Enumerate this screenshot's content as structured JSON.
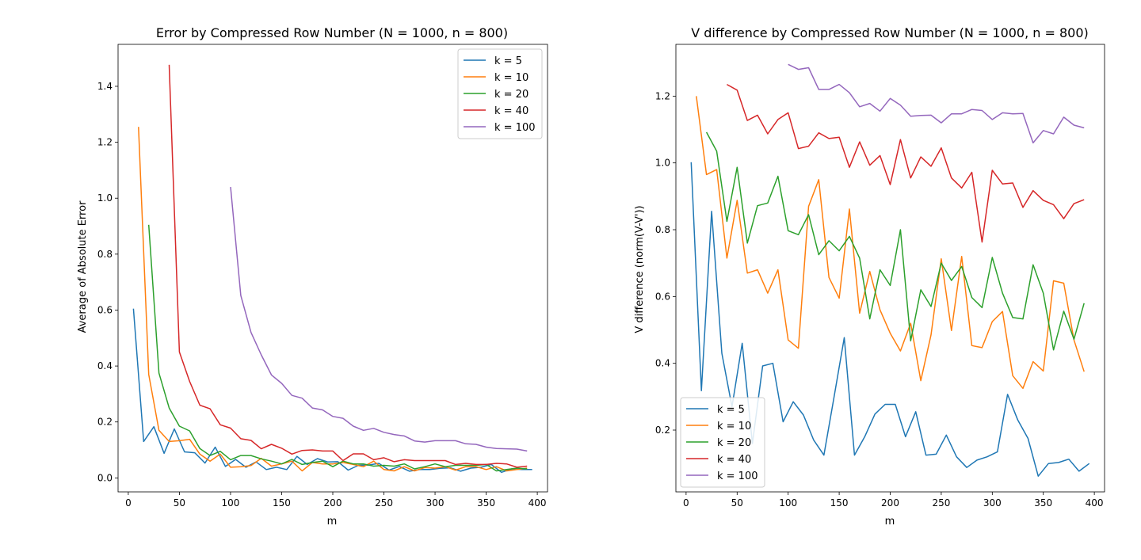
{
  "chart_data": [
    {
      "type": "line",
      "title": "Error by Compressed Row Number (N = 1000, n = 800)",
      "xlabel": "m",
      "ylabel": "Average of Absolute Error",
      "xlim": [
        -10,
        410
      ],
      "ylim": [
        -0.05,
        1.55
      ],
      "xticks": [
        0,
        50,
        100,
        150,
        200,
        250,
        300,
        350,
        400
      ],
      "yticks": [
        0.0,
        0.2,
        0.4,
        0.6,
        0.8,
        1.0,
        1.2,
        1.4
      ],
      "legend": "top-right",
      "grid": false,
      "series": [
        {
          "name": "k = 5",
          "color": "#1f77b4",
          "x": [
            5,
            15,
            25,
            35,
            45,
            55,
            65,
            75,
            85,
            95,
            105,
            115,
            125,
            135,
            145,
            155,
            165,
            175,
            185,
            195,
            205,
            215,
            225,
            235,
            245,
            255,
            265,
            275,
            285,
            295,
            305,
            315,
            325,
            335,
            345,
            355,
            365,
            375,
            385,
            395
          ],
          "y": [
            0.605,
            0.13,
            0.183,
            0.088,
            0.175,
            0.093,
            0.09,
            0.053,
            0.11,
            0.041,
            0.066,
            0.038,
            0.057,
            0.03,
            0.038,
            0.03,
            0.077,
            0.048,
            0.069,
            0.057,
            0.058,
            0.028,
            0.045,
            0.046,
            0.052,
            0.028,
            0.041,
            0.024,
            0.03,
            0.03,
            0.034,
            0.036,
            0.024,
            0.035,
            0.038,
            0.048,
            0.02,
            0.032,
            0.03,
            0.03
          ]
        },
        {
          "name": "k = 10",
          "color": "#ff7f0e",
          "x": [
            10,
            20,
            30,
            40,
            50,
            60,
            70,
            80,
            90,
            100,
            110,
            120,
            130,
            140,
            150,
            160,
            170,
            180,
            190,
            200,
            210,
            220,
            230,
            240,
            250,
            260,
            270,
            280,
            290,
            300,
            310,
            320,
            330,
            340,
            350,
            360,
            370,
            380,
            390
          ],
          "y": [
            1.255,
            0.37,
            0.17,
            0.13,
            0.133,
            0.138,
            0.085,
            0.06,
            0.085,
            0.038,
            0.04,
            0.044,
            0.07,
            0.042,
            0.05,
            0.06,
            0.025,
            0.055,
            0.05,
            0.05,
            0.055,
            0.048,
            0.04,
            0.06,
            0.03,
            0.025,
            0.04,
            0.025,
            0.037,
            0.035,
            0.04,
            0.028,
            0.04,
            0.04,
            0.03,
            0.04,
            0.025,
            0.03,
            0.035
          ]
        },
        {
          "name": "k = 20",
          "color": "#2ca02c",
          "x": [
            20,
            30,
            40,
            50,
            60,
            70,
            80,
            90,
            100,
            110,
            120,
            130,
            140,
            150,
            160,
            170,
            180,
            190,
            200,
            210,
            220,
            230,
            240,
            250,
            260,
            270,
            280,
            290,
            300,
            310,
            320,
            330,
            340,
            350,
            360,
            370,
            380,
            390
          ],
          "y": [
            0.905,
            0.375,
            0.25,
            0.185,
            0.168,
            0.105,
            0.08,
            0.095,
            0.065,
            0.08,
            0.08,
            0.068,
            0.06,
            0.05,
            0.066,
            0.048,
            0.055,
            0.06,
            0.04,
            0.06,
            0.05,
            0.05,
            0.042,
            0.045,
            0.042,
            0.05,
            0.032,
            0.04,
            0.05,
            0.04,
            0.045,
            0.045,
            0.045,
            0.048,
            0.025,
            0.03,
            0.035,
            0.032
          ]
        },
        {
          "name": "k = 40",
          "color": "#d62728",
          "x": [
            40,
            50,
            60,
            70,
            80,
            90,
            100,
            110,
            120,
            130,
            140,
            150,
            160,
            170,
            180,
            190,
            200,
            210,
            220,
            230,
            240,
            250,
            260,
            270,
            280,
            290,
            300,
            310,
            320,
            330,
            340,
            350,
            360,
            370,
            380,
            390
          ],
          "y": [
            1.477,
            0.45,
            0.345,
            0.26,
            0.247,
            0.19,
            0.178,
            0.14,
            0.134,
            0.104,
            0.12,
            0.106,
            0.085,
            0.098,
            0.1,
            0.096,
            0.096,
            0.062,
            0.086,
            0.086,
            0.065,
            0.072,
            0.058,
            0.065,
            0.062,
            0.062,
            0.062,
            0.062,
            0.048,
            0.052,
            0.048,
            0.048,
            0.052,
            0.05,
            0.038,
            0.042
          ]
        },
        {
          "name": "k = 100",
          "color": "#9467bd",
          "x": [
            100,
            110,
            120,
            130,
            140,
            150,
            160,
            170,
            180,
            190,
            200,
            210,
            220,
            230,
            240,
            250,
            260,
            270,
            280,
            290,
            300,
            310,
            320,
            330,
            340,
            350,
            360,
            370,
            380,
            390
          ],
          "y": [
            1.04,
            0.652,
            0.52,
            0.44,
            0.368,
            0.338,
            0.295,
            0.285,
            0.25,
            0.243,
            0.22,
            0.213,
            0.185,
            0.17,
            0.177,
            0.163,
            0.155,
            0.15,
            0.132,
            0.128,
            0.133,
            0.133,
            0.133,
            0.122,
            0.12,
            0.11,
            0.105,
            0.104,
            0.103,
            0.096
          ]
        }
      ]
    },
    {
      "type": "line",
      "title": "V difference by Compressed Row Number (N = 1000, n = 800)",
      "xlabel": "m",
      "ylabel": "V difference (norm(V-V'))",
      "xlim": [
        -10,
        410
      ],
      "ylim": [
        0.015,
        1.355
      ],
      "xticks": [
        0,
        50,
        100,
        150,
        200,
        250,
        300,
        350,
        400
      ],
      "yticks": [
        0.2,
        0.4,
        0.6,
        0.8,
        1.0,
        1.2
      ],
      "legend": "bottom-left",
      "grid": false,
      "series": [
        {
          "name": "k = 5",
          "color": "#1f77b4",
          "x": [
            5,
            15,
            25,
            35,
            45,
            55,
            65,
            75,
            85,
            95,
            105,
            115,
            125,
            135,
            145,
            155,
            165,
            175,
            185,
            195,
            205,
            215,
            225,
            235,
            245,
            255,
            265,
            275,
            285,
            295,
            305,
            315,
            325,
            335,
            345,
            355,
            365,
            375,
            385,
            395
          ],
          "y": [
            1.002,
            0.318,
            0.855,
            0.43,
            0.27,
            0.46,
            0.16,
            0.392,
            0.4,
            0.225,
            0.285,
            0.245,
            0.17,
            0.125,
            0.3,
            0.477,
            0.125,
            0.18,
            0.248,
            0.277,
            0.277,
            0.18,
            0.255,
            0.125,
            0.128,
            0.185,
            0.12,
            0.088,
            0.11,
            0.12,
            0.135,
            0.307,
            0.23,
            0.175,
            0.062,
            0.1,
            0.103,
            0.113,
            0.077,
            0.1
          ]
        },
        {
          "name": "k = 10",
          "color": "#ff7f0e",
          "x": [
            10,
            20,
            30,
            40,
            50,
            60,
            70,
            80,
            90,
            100,
            110,
            120,
            130,
            140,
            150,
            160,
            170,
            180,
            190,
            200,
            210,
            220,
            230,
            240,
            250,
            260,
            270,
            280,
            290,
            300,
            310,
            320,
            330,
            340,
            350,
            360,
            370,
            380,
            390
          ],
          "y": [
            1.2,
            0.965,
            0.98,
            0.715,
            0.888,
            0.67,
            0.68,
            0.61,
            0.68,
            0.47,
            0.445,
            0.87,
            0.95,
            0.657,
            0.595,
            0.862,
            0.55,
            0.675,
            0.56,
            0.49,
            0.437,
            0.52,
            0.348,
            0.485,
            0.713,
            0.498,
            0.72,
            0.453,
            0.447,
            0.525,
            0.555,
            0.363,
            0.325,
            0.405,
            0.377,
            0.647,
            0.64,
            0.47,
            0.375
          ]
        },
        {
          "name": "k = 20",
          "color": "#2ca02c",
          "x": [
            20,
            30,
            40,
            50,
            60,
            70,
            80,
            90,
            100,
            110,
            120,
            130,
            140,
            150,
            160,
            170,
            180,
            190,
            200,
            210,
            220,
            230,
            240,
            250,
            260,
            270,
            280,
            290,
            300,
            310,
            320,
            330,
            340,
            350,
            360,
            370,
            380,
            390
          ],
          "y": [
            1.092,
            1.035,
            0.825,
            0.987,
            0.76,
            0.872,
            0.88,
            0.96,
            0.797,
            0.785,
            0.845,
            0.725,
            0.767,
            0.737,
            0.78,
            0.715,
            0.533,
            0.68,
            0.633,
            0.8,
            0.467,
            0.62,
            0.57,
            0.7,
            0.648,
            0.69,
            0.597,
            0.567,
            0.717,
            0.61,
            0.537,
            0.533,
            0.695,
            0.61,
            0.44,
            0.556,
            0.472,
            0.58
          ]
        },
        {
          "name": "k = 40",
          "color": "#d62728",
          "x": [
            40,
            50,
            60,
            70,
            80,
            90,
            100,
            110,
            120,
            130,
            140,
            150,
            160,
            170,
            180,
            190,
            200,
            210,
            220,
            230,
            240,
            250,
            260,
            270,
            280,
            290,
            300,
            310,
            320,
            330,
            340,
            350,
            360,
            370,
            380,
            390
          ],
          "y": [
            1.235,
            1.218,
            1.127,
            1.143,
            1.087,
            1.13,
            1.15,
            1.043,
            1.05,
            1.09,
            1.073,
            1.077,
            0.987,
            1.063,
            0.993,
            1.022,
            0.935,
            1.07,
            0.955,
            1.018,
            0.99,
            1.045,
            0.955,
            0.925,
            0.972,
            0.763,
            0.978,
            0.937,
            0.94,
            0.867,
            0.917,
            0.888,
            0.875,
            0.833,
            0.878,
            0.89
          ]
        },
        {
          "name": "k = 100",
          "color": "#9467bd",
          "x": [
            100,
            110,
            120,
            130,
            140,
            150,
            160,
            170,
            180,
            190,
            200,
            210,
            220,
            230,
            240,
            250,
            260,
            270,
            280,
            290,
            300,
            310,
            320,
            330,
            340,
            350,
            360,
            370,
            380,
            390
          ],
          "y": [
            1.295,
            1.28,
            1.285,
            1.22,
            1.22,
            1.235,
            1.21,
            1.168,
            1.178,
            1.155,
            1.193,
            1.173,
            1.14,
            1.142,
            1.143,
            1.12,
            1.147,
            1.147,
            1.16,
            1.157,
            1.13,
            1.15,
            1.147,
            1.148,
            1.06,
            1.097,
            1.087,
            1.137,
            1.113,
            1.105
          ]
        }
      ]
    }
  ]
}
